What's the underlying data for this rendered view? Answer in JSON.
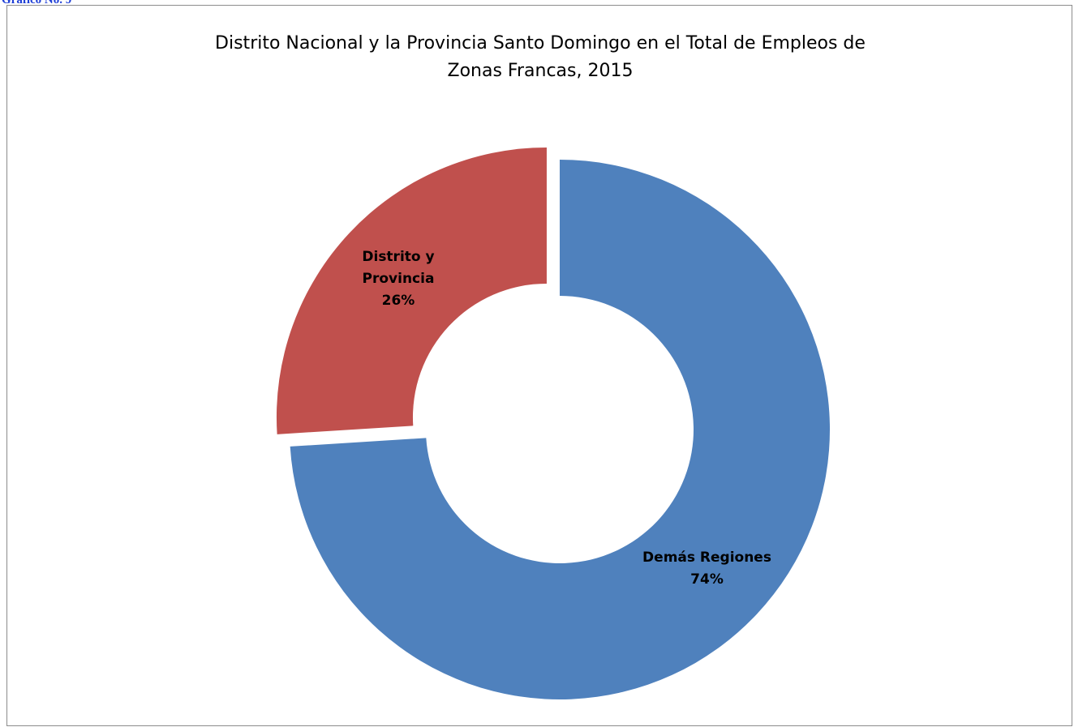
{
  "caption": "Gráfico No. 9",
  "chart_data": {
    "type": "pie",
    "title": [
      "Distrito Nacional y la Provincia Santo Domingo en el Total de Empleos de",
      "Zonas Francas, 2015"
    ],
    "slices": [
      {
        "label": [
          "Demás Regiones"
        ],
        "percent_label": "74%",
        "value": 74,
        "color": "#4f81bd",
        "exploded": false
      },
      {
        "label": [
          "Distrito y",
          "Provincia"
        ],
        "percent_label": "26%",
        "value": 26,
        "color": "#c0504d",
        "exploded": true
      }
    ],
    "donut": true,
    "legend": "none"
  }
}
